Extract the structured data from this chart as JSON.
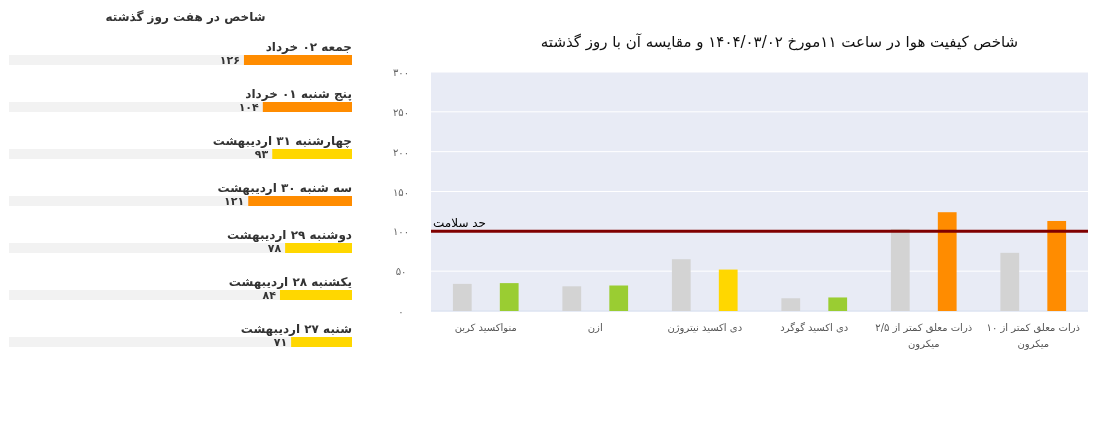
{
  "chart_data": [
    {
      "type": "bar",
      "orientation": "horizontal",
      "title": "شاخص در هفت روز گذشته",
      "categories": [
        "جمعه ۰۲ خرداد",
        "پنج شنبه ۰۱ خرداد",
        "چهارشنبه ۳۱ اردیبهشت",
        "سه شنبه ۳۰ اردیبهشت",
        "دوشنبه ۲۹ اردیبهشت",
        "یکشنبه ۲۸ اردیبهشت",
        "شنبه ۲۷ اردیبهشت"
      ],
      "values": [
        126,
        104,
        93,
        121,
        78,
        84,
        71
      ],
      "value_labels": [
        "۱۲۶",
        "۱۰۴",
        "۹۳",
        "۱۲۱",
        "۷۸",
        "۸۴",
        "۷۱"
      ],
      "colors": [
        "#ff8c00",
        "#ff8c00",
        "#ffd700",
        "#ff8c00",
        "#ffd700",
        "#ffd700",
        "#ffd700"
      ],
      "xlim": [
        400,
        0
      ]
    },
    {
      "type": "bar",
      "title": "شاخص کیفیت هوا در ساعت ۱۱مورخ ۱۴۰۴/۰۳/۰۲ و مقایسه آن با روز گذشته",
      "categories": [
        "منواکسید کربن",
        "ازن",
        "دی اکسید نیتروژن",
        "دی اکسید گوگرد",
        "ذرات معلق کمتر از ۲/۵ میکرون",
        "ذرات معلق کمتر از ۱۰ میکرون"
      ],
      "series": [
        {
          "color": "#d3d3d3",
          "values": [
            34,
            31,
            65,
            16,
            103,
            73
          ]
        },
        {
          "colors": [
            "#9acd32",
            "#9acd32",
            "#ffd700",
            "#9acd32",
            "#ff8c00",
            "#ff8c00"
          ],
          "values": [
            35,
            32,
            52,
            17,
            124,
            113
          ]
        }
      ],
      "ylim": [
        0,
        300
      ],
      "yticks": [
        {
          "value": 0,
          "label": "۰"
        },
        {
          "value": 50,
          "label": "۵۰"
        },
        {
          "value": 100,
          "label": "۱۰۰"
        },
        {
          "value": 150,
          "label": "۱۵۰"
        },
        {
          "value": 200,
          "label": "۲۰۰"
        },
        {
          "value": 250,
          "label": "۲۵۰"
        },
        {
          "value": 300,
          "label": "۳۰۰"
        }
      ],
      "grid": "y",
      "ref_lines": [
        {
          "axis": "y",
          "value": 100,
          "label": "حد سلامت",
          "color": "#800000"
        }
      ]
    }
  ]
}
